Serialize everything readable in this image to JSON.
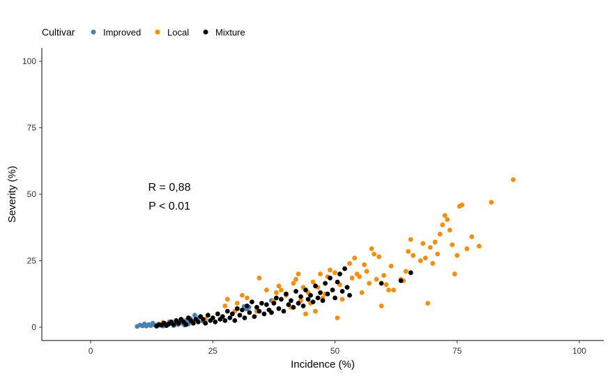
{
  "chart_data": {
    "type": "scatter",
    "title": "",
    "xlabel": "Incidence (%)",
    "ylabel": "Severity (%)",
    "xlim": [
      -10,
      105
    ],
    "ylim": [
      -5,
      105
    ],
    "x_ticks": [
      0,
      25,
      50,
      75,
      100
    ],
    "y_ticks": [
      0,
      25,
      50,
      75,
      100
    ],
    "grid": false,
    "legend": {
      "title": "Cultivar",
      "position": "top-left"
    },
    "annotations": [
      "R = 0,88",
      "P < 0.01"
    ],
    "series": [
      {
        "name": "Improved",
        "color": "#4682B4",
        "points": [
          [
            9.5,
            0.3
          ],
          [
            10.1,
            0.8
          ],
          [
            10.6,
            0.5
          ],
          [
            11.0,
            1.2
          ],
          [
            11.4,
            0.4
          ],
          [
            11.9,
            1.0
          ],
          [
            12.3,
            0.6
          ],
          [
            12.7,
            1.5
          ],
          [
            13.1,
            0.8
          ],
          [
            13.5,
            0.3
          ],
          [
            13.9,
            1.1
          ],
          [
            14.3,
            0.7
          ],
          [
            14.8,
            0.4
          ],
          [
            15.2,
            1.3
          ],
          [
            15.7,
            0.9
          ],
          [
            16.1,
            2.0
          ],
          [
            16.6,
            1.4
          ],
          [
            17.0,
            0.6
          ],
          [
            17.5,
            1.8
          ],
          [
            17.9,
            1.0
          ],
          [
            18.3,
            2.3
          ],
          [
            18.8,
            1.5
          ],
          [
            19.2,
            0.8
          ],
          [
            19.6,
            2.6
          ],
          [
            20.0,
            1.2
          ],
          [
            20.4,
            3.2
          ],
          [
            20.8,
            1.9
          ],
          [
            21.3,
            4.5
          ],
          [
            21.8,
            2.8
          ],
          [
            22.3,
            3.8
          ],
          [
            23.0,
            2.2
          ],
          [
            31.4,
            7.8
          ],
          [
            31.9,
            6.8
          ],
          [
            32.4,
            7.5
          ],
          [
            37.0,
            10.0
          ]
        ]
      },
      {
        "name": "Local",
        "color": "#FF8C00",
        "points": [
          [
            14.8,
            1.8
          ],
          [
            19.0,
            2.5
          ],
          [
            23.5,
            3.0
          ],
          [
            26.0,
            5.0
          ],
          [
            27.5,
            8.0
          ],
          [
            28.0,
            10.5
          ],
          [
            29.5,
            6.0
          ],
          [
            30.0,
            9.0
          ],
          [
            31.0,
            12.0
          ],
          [
            32.0,
            11.0
          ],
          [
            34.0,
            6.0
          ],
          [
            34.5,
            18.5
          ],
          [
            36.0,
            14.0
          ],
          [
            37.5,
            10.0
          ],
          [
            38.0,
            13.0
          ],
          [
            38.5,
            15.5
          ],
          [
            39.0,
            14.0
          ],
          [
            40.0,
            12.0
          ],
          [
            41.0,
            7.5
          ],
          [
            41.5,
            16.5
          ],
          [
            42.0,
            18.0
          ],
          [
            42.5,
            20.0
          ],
          [
            43.0,
            10.0
          ],
          [
            43.5,
            15.0
          ],
          [
            44.0,
            5.0
          ],
          [
            44.5,
            13.0
          ],
          [
            45.0,
            9.0
          ],
          [
            45.5,
            17.0
          ],
          [
            46.0,
            6.0
          ],
          [
            46.5,
            15.0
          ],
          [
            47.0,
            20.0
          ],
          [
            47.5,
            11.0
          ],
          [
            48.0,
            12.5
          ],
          [
            48.5,
            19.0
          ],
          [
            49.0,
            21.5
          ],
          [
            49.5,
            14.0
          ],
          [
            50.0,
            20.5
          ],
          [
            50.5,
            3.5
          ],
          [
            51.0,
            16.0
          ],
          [
            51.5,
            10.5
          ],
          [
            52.0,
            22.0
          ],
          [
            52.5,
            15.0
          ],
          [
            53.0,
            24.0
          ],
          [
            53.5,
            18.5
          ],
          [
            54.0,
            26.0
          ],
          [
            54.5,
            20.0
          ],
          [
            55.0,
            19.0
          ],
          [
            55.5,
            13.0
          ],
          [
            56.0,
            23.5
          ],
          [
            56.5,
            21.0
          ],
          [
            57.0,
            16.5
          ],
          [
            57.5,
            29.5
          ],
          [
            58.0,
            27.5
          ],
          [
            58.5,
            18.0
          ],
          [
            59.0,
            26.5
          ],
          [
            59.5,
            8.0
          ],
          [
            60.0,
            19.5
          ],
          [
            60.5,
            16.0
          ],
          [
            61.0,
            14.0
          ],
          [
            61.5,
            23.0
          ],
          [
            62.0,
            14.0
          ],
          [
            63.5,
            18.0
          ],
          [
            64.0,
            17.5
          ],
          [
            64.5,
            21.0
          ],
          [
            65.0,
            28.5
          ],
          [
            65.5,
            33.0
          ],
          [
            66.0,
            27.0
          ],
          [
            67.5,
            25.0
          ],
          [
            68.0,
            31.5
          ],
          [
            68.5,
            26.0
          ],
          [
            69.0,
            9.0
          ],
          [
            69.5,
            30.0
          ],
          [
            70.0,
            24.0
          ],
          [
            70.5,
            32.0
          ],
          [
            71.0,
            27.5
          ],
          [
            71.5,
            35.0
          ],
          [
            72.0,
            38.5
          ],
          [
            72.5,
            42.0
          ],
          [
            73.0,
            40.5
          ],
          [
            73.5,
            36.5
          ],
          [
            74.0,
            31.0
          ],
          [
            74.5,
            20.0
          ],
          [
            75.0,
            27.0
          ],
          [
            75.5,
            45.5
          ],
          [
            76.0,
            46.0
          ],
          [
            77.0,
            29.5
          ],
          [
            78.0,
            34.0
          ],
          [
            79.5,
            30.5
          ],
          [
            82.0,
            47.0
          ],
          [
            86.5,
            55.5
          ]
        ]
      },
      {
        "name": "Mixture",
        "color": "#000000",
        "points": [
          [
            13.5,
            0.5
          ],
          [
            14.0,
            1.0
          ],
          [
            14.5,
            0.8
          ],
          [
            15.0,
            1.5
          ],
          [
            15.5,
            0.6
          ],
          [
            16.0,
            1.2
          ],
          [
            16.5,
            2.0
          ],
          [
            17.0,
            1.0
          ],
          [
            17.5,
            2.5
          ],
          [
            18.0,
            1.5
          ],
          [
            18.5,
            3.0
          ],
          [
            19.0,
            2.0
          ],
          [
            19.5,
            1.0
          ],
          [
            20.0,
            3.5
          ],
          [
            20.5,
            2.5
          ],
          [
            21.0,
            1.5
          ],
          [
            21.5,
            3.0
          ],
          [
            22.0,
            2.0
          ],
          [
            22.5,
            4.0
          ],
          [
            23.0,
            3.0
          ],
          [
            23.5,
            1.5
          ],
          [
            24.0,
            4.5
          ],
          [
            24.5,
            2.5
          ],
          [
            25.0,
            3.5
          ],
          [
            25.5,
            2.0
          ],
          [
            26.0,
            5.0
          ],
          [
            26.5,
            3.0
          ],
          [
            27.0,
            4.0
          ],
          [
            27.5,
            2.5
          ],
          [
            28.0,
            6.0
          ],
          [
            28.5,
            3.5
          ],
          [
            29.0,
            5.0
          ],
          [
            29.5,
            2.5
          ],
          [
            30.0,
            7.0
          ],
          [
            30.5,
            4.5
          ],
          [
            31.0,
            6.5
          ],
          [
            31.5,
            3.5
          ],
          [
            32.0,
            8.0
          ],
          [
            32.5,
            5.5
          ],
          [
            33.0,
            9.5
          ],
          [
            33.5,
            4.0
          ],
          [
            34.0,
            7.5
          ],
          [
            34.5,
            6.0
          ],
          [
            35.0,
            9.0
          ],
          [
            35.5,
            5.0
          ],
          [
            36.0,
            8.5
          ],
          [
            36.5,
            6.5
          ],
          [
            37.0,
            5.5
          ],
          [
            37.5,
            9.0
          ],
          [
            38.0,
            11.0
          ],
          [
            38.5,
            7.0
          ],
          [
            39.0,
            10.5
          ],
          [
            39.5,
            6.0
          ],
          [
            40.0,
            12.5
          ],
          [
            40.5,
            8.5
          ],
          [
            41.0,
            10.0
          ],
          [
            41.5,
            7.5
          ],
          [
            42.0,
            13.5
          ],
          [
            42.5,
            9.0
          ],
          [
            43.0,
            11.5
          ],
          [
            43.5,
            8.0
          ],
          [
            44.0,
            14.0
          ],
          [
            44.5,
            10.5
          ],
          [
            45.0,
            12.0
          ],
          [
            45.5,
            9.5
          ],
          [
            46.0,
            15.5
          ],
          [
            46.5,
            11.0
          ],
          [
            47.0,
            13.0
          ],
          [
            47.5,
            10.0
          ],
          [
            48.0,
            16.5
          ],
          [
            48.5,
            12.5
          ],
          [
            49.0,
            18.5
          ],
          [
            49.5,
            14.0
          ],
          [
            50.0,
            11.0
          ],
          [
            50.5,
            17.0
          ],
          [
            51.0,
            20.0
          ],
          [
            51.5,
            13.5
          ],
          [
            52.0,
            22.0
          ],
          [
            52.5,
            15.0
          ],
          [
            53.0,
            12.0
          ],
          [
            59.5,
            16.5
          ],
          [
            63.5,
            17.5
          ],
          [
            65.5,
            20.5
          ]
        ]
      }
    ]
  }
}
